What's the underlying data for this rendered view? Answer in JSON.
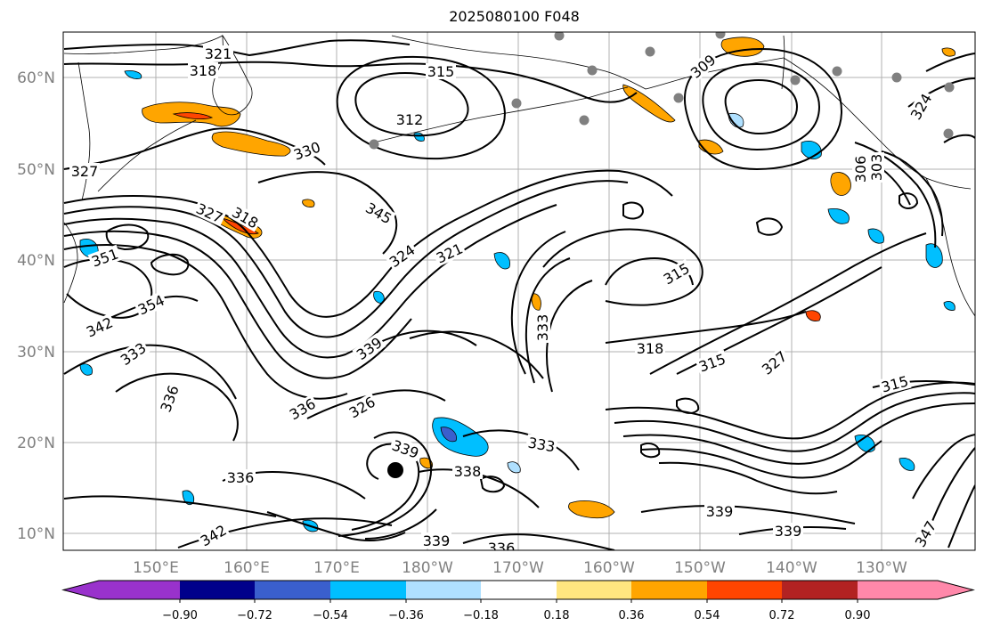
{
  "title": "2025080100 F048",
  "lat_labels": [
    "60°N",
    "50°N",
    "40°N",
    "30°N",
    "20°N",
    "10°N"
  ],
  "lon_labels": [
    "150°E",
    "160°E",
    "170°E",
    "180°W",
    "170°W",
    "160°W",
    "150°W",
    "140°W",
    "130°W"
  ],
  "colorbar": {
    "colors": [
      "#9932cc",
      "#00008b",
      "#3a5fcd",
      "#00bfff",
      "#afe0ff",
      "#ffffff",
      "#ffe680",
      "#ffa500",
      "#ff4500",
      "#b22222",
      "#ff88aa"
    ],
    "tick_labels": [
      "−0.90",
      "−0.72",
      "−0.54",
      "−0.36",
      "−0.18",
      "0.18",
      "0.36",
      "0.54",
      "0.72",
      "0.90"
    ]
  },
  "contour_labels": [
    "321",
    "318",
    "315",
    "312",
    "327",
    "330",
    "327",
    "318",
    "345",
    "351",
    "354",
    "342",
    "333",
    "321",
    "324",
    "315",
    "327",
    "318",
    "315",
    "333",
    "339",
    "336",
    "326",
    "339",
    "338",
    "333",
    "336",
    "342",
    "336",
    "339",
    "339",
    "339",
    "336",
    "347",
    "315",
    "324",
    "306",
    "303",
    "309"
  ]
}
